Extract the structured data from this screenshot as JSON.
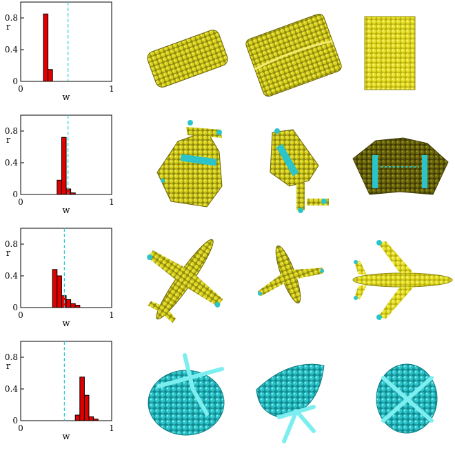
{
  "figure": {
    "colors": {
      "bar_fill": "#e00000",
      "bar_stroke": "#000000",
      "dashed_line": "#22ccdd",
      "shape_yellow": "#d6cf1a",
      "shape_yellow_dark": "#6a6408",
      "shape_cyan": "#2ccfd4",
      "shape_cyan_dark": "#0f7a80"
    },
    "shape_icons": [
      [
        "cylinder-view-1",
        "cylinder-view-2",
        "cylinder-view-3"
      ],
      [
        "folded-shape-view-1",
        "folded-shape-view-2",
        "folded-shape-view-3"
      ],
      [
        "airplane-view-1",
        "airplane-view-2",
        "airplane-view-3"
      ],
      [
        "shell-view-1",
        "shell-view-2",
        "shell-view-3"
      ]
    ]
  },
  "chart_data": [
    {
      "type": "bar",
      "xlabel": "w",
      "ylabel": "r",
      "xlim": [
        0,
        1
      ],
      "ylim": [
        0,
        1.0
      ],
      "xticks": [
        "0",
        "1"
      ],
      "yticks": [
        "0",
        "0.4",
        "0.8"
      ],
      "ytick_values": [
        0,
        0.4,
        0.8
      ],
      "bin_width": 0.05,
      "bins": [
        0.25,
        0.3
      ],
      "values": [
        0.85,
        0.15
      ],
      "dashed_line_x": 0.52
    },
    {
      "type": "bar",
      "xlabel": "w",
      "ylabel": "r",
      "xlim": [
        0,
        1
      ],
      "ylim": [
        0,
        1.0
      ],
      "xticks": [
        "0",
        "1"
      ],
      "yticks": [
        "0",
        "0.4",
        "0.8"
      ],
      "ytick_values": [
        0,
        0.4,
        0.8
      ],
      "bin_width": 0.05,
      "bins": [
        0.4,
        0.45,
        0.5,
        0.55
      ],
      "values": [
        0.18,
        0.72,
        0.07,
        0.02
      ],
      "dashed_line_x": 0.52
    },
    {
      "type": "bar",
      "xlabel": "w",
      "ylabel": "r",
      "xlim": [
        0,
        1
      ],
      "ylim": [
        0,
        1.0
      ],
      "xticks": [
        "0",
        "1"
      ],
      "yticks": [
        "0",
        "0.4",
        "0.8"
      ],
      "ytick_values": [
        0,
        0.4,
        0.8
      ],
      "bin_width": 0.05,
      "bins": [
        0.35,
        0.4,
        0.45,
        0.5,
        0.55,
        0.6
      ],
      "values": [
        0.48,
        0.4,
        0.15,
        0.1,
        0.05,
        0.03
      ],
      "dashed_line_x": 0.48
    },
    {
      "type": "bar",
      "xlabel": "w",
      "ylabel": "r",
      "xlim": [
        0,
        1
      ],
      "ylim": [
        0,
        1.0
      ],
      "xticks": [
        "0",
        "1"
      ],
      "yticks": [
        "0",
        "0.4",
        "0.8"
      ],
      "ytick_values": [
        0,
        0.4,
        0.8
      ],
      "bin_width": 0.05,
      "bins": [
        0.6,
        0.65,
        0.7,
        0.75,
        0.8
      ],
      "values": [
        0.07,
        0.55,
        0.32,
        0.05,
        0.02
      ],
      "dashed_line_x": 0.48
    }
  ]
}
